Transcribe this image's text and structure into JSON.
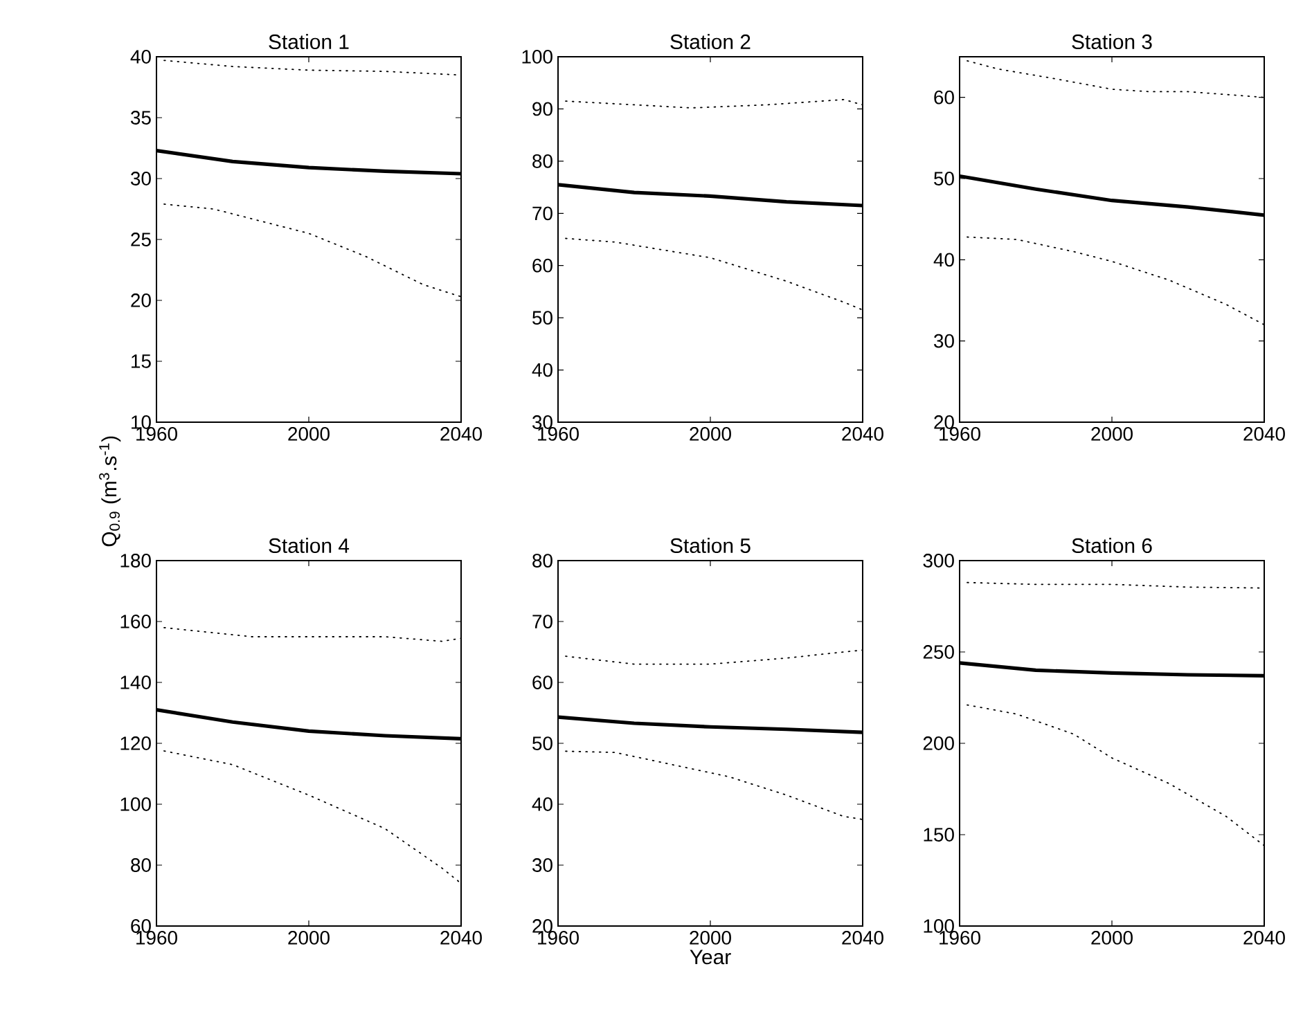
{
  "chart_data": [
    {
      "type": "line",
      "title": "Station 1",
      "ylabel": "Q$_{0.9}$ (m$^{3}$.s$^{-1}$)",
      "xlim": [
        1960,
        2040
      ],
      "xticks": [
        1960,
        2000,
        2040
      ],
      "ylim": [
        10,
        40
      ],
      "yticks": [
        10,
        15,
        20,
        25,
        30,
        35,
        40
      ],
      "grid": false,
      "series": [
        {
          "color": "#000000",
          "line_style": "dotted",
          "x": [
            1962,
            1980,
            2000,
            2020,
            2040
          ],
          "values": [
            39.7,
            39.2,
            38.9,
            38.8,
            38.5
          ]
        },
        {
          "color": "#000000",
          "line_style": "solid",
          "x": [
            1960,
            1980,
            2000,
            2020,
            2040
          ],
          "values": [
            32.3,
            31.4,
            30.9,
            30.6,
            30.4
          ]
        },
        {
          "color": "#000000",
          "line_style": "dotted",
          "x": [
            1962,
            1975,
            1990,
            2000,
            2015,
            2030,
            2040
          ],
          "values": [
            27.9,
            27.5,
            26.3,
            25.5,
            23.6,
            21.3,
            20.3
          ]
        }
      ]
    },
    {
      "type": "line",
      "title": "Station 2",
      "xlim": [
        1960,
        2040
      ],
      "xticks": [
        1960,
        2000,
        2040
      ],
      "ylim": [
        30,
        100
      ],
      "yticks": [
        30,
        40,
        50,
        60,
        70,
        80,
        90,
        100
      ],
      "grid": false,
      "series": [
        {
          "color": "#000000",
          "line_style": "dotted",
          "x": [
            1962,
            1980,
            1995,
            2015,
            2035,
            2040
          ],
          "values": [
            91.5,
            90.8,
            90.2,
            90.8,
            91.8,
            90.8
          ]
        },
        {
          "color": "#000000",
          "line_style": "solid",
          "x": [
            1960,
            1980,
            2000,
            2020,
            2040
          ],
          "values": [
            75.5,
            74,
            73.3,
            72.2,
            71.5
          ]
        },
        {
          "color": "#000000",
          "line_style": "dotted",
          "x": [
            1962,
            1975,
            2000,
            2020,
            2035,
            2040
          ],
          "values": [
            65.2,
            64.5,
            61.5,
            57,
            53,
            51.5
          ]
        }
      ]
    },
    {
      "type": "line",
      "title": "Station 3",
      "xlim": [
        1960,
        2040
      ],
      "xticks": [
        1960,
        2000,
        2040
      ],
      "ylim": [
        20,
        65
      ],
      "yticks": [
        20,
        30,
        40,
        50,
        60
      ],
      "grid": false,
      "series": [
        {
          "color": "#000000",
          "line_style": "dotted",
          "x": [
            1962,
            1970,
            1985,
            2000,
            2010,
            2020,
            2040
          ],
          "values": [
            64.5,
            63.5,
            62.3,
            61,
            60.7,
            60.7,
            60
          ]
        },
        {
          "color": "#000000",
          "line_style": "solid",
          "x": [
            1960,
            1980,
            2000,
            2020,
            2040
          ],
          "values": [
            50.3,
            48.7,
            47.3,
            46.5,
            45.5
          ]
        },
        {
          "color": "#000000",
          "line_style": "dotted",
          "x": [
            1962,
            1975,
            1990,
            2000,
            2015,
            2030,
            2040
          ],
          "values": [
            42.8,
            42.5,
            41,
            39.8,
            37.5,
            34.5,
            32
          ]
        }
      ]
    },
    {
      "type": "line",
      "title": "Station 4",
      "xlim": [
        1960,
        2040
      ],
      "xticks": [
        1960,
        2000,
        2040
      ],
      "ylim": [
        60,
        180
      ],
      "yticks": [
        60,
        80,
        100,
        120,
        140,
        160,
        180
      ],
      "grid": false,
      "series": [
        {
          "color": "#000000",
          "line_style": "dotted",
          "x": [
            1962,
            1985,
            2000,
            2020,
            2035,
            2040
          ],
          "values": [
            158,
            155,
            155,
            155,
            153.5,
            154.5
          ]
        },
        {
          "color": "#000000",
          "line_style": "solid",
          "x": [
            1960,
            1980,
            2000,
            2020,
            2040
          ],
          "values": [
            131,
            127,
            124,
            122.5,
            121.5
          ]
        },
        {
          "color": "#000000",
          "line_style": "dotted",
          "x": [
            1962,
            1980,
            2000,
            2020,
            2035,
            2040
          ],
          "values": [
            117.5,
            113,
            103,
            92,
            79,
            74
          ]
        }
      ]
    },
    {
      "type": "line",
      "title": "Station 5",
      "xlabel": "Year",
      "xlim": [
        1960,
        2040
      ],
      "xticks": [
        1960,
        2000,
        2040
      ],
      "ylim": [
        20,
        80
      ],
      "yticks": [
        20,
        30,
        40,
        50,
        60,
        70,
        80
      ],
      "grid": false,
      "series": [
        {
          "color": "#000000",
          "line_style": "dotted",
          "x": [
            1962,
            1980,
            2000,
            2020,
            2035,
            2040
          ],
          "values": [
            64.3,
            63,
            63,
            64,
            65,
            65.3
          ]
        },
        {
          "color": "#000000",
          "line_style": "solid",
          "x": [
            1960,
            1980,
            2000,
            2020,
            2040
          ],
          "values": [
            54.3,
            53.3,
            52.7,
            52.3,
            51.8
          ]
        },
        {
          "color": "#000000",
          "line_style": "dotted",
          "x": [
            1962,
            1975,
            1990,
            2005,
            2020,
            2035,
            2040
          ],
          "values": [
            48.7,
            48.5,
            46.5,
            44.5,
            41.5,
            38,
            37.5
          ]
        }
      ]
    },
    {
      "type": "line",
      "title": "Station 6",
      "xlim": [
        1960,
        2040
      ],
      "xticks": [
        1960,
        2000,
        2040
      ],
      "ylim": [
        100,
        300
      ],
      "yticks": [
        100,
        150,
        200,
        250,
        300
      ],
      "grid": false,
      "series": [
        {
          "color": "#000000",
          "line_style": "dotted",
          "x": [
            1962,
            1980,
            2000,
            2020,
            2040
          ],
          "values": [
            288,
            287,
            287,
            285.5,
            285
          ]
        },
        {
          "color": "#000000",
          "line_style": "solid",
          "x": [
            1960,
            1980,
            2000,
            2020,
            2040
          ],
          "values": [
            244,
            240,
            238.5,
            237.5,
            237
          ]
        },
        {
          "color": "#000000",
          "line_style": "dotted",
          "x": [
            1962,
            1975,
            1990,
            2000,
            2015,
            2030,
            2040
          ],
          "values": [
            221,
            216,
            205,
            192,
            178,
            160,
            144
          ]
        }
      ]
    }
  ]
}
